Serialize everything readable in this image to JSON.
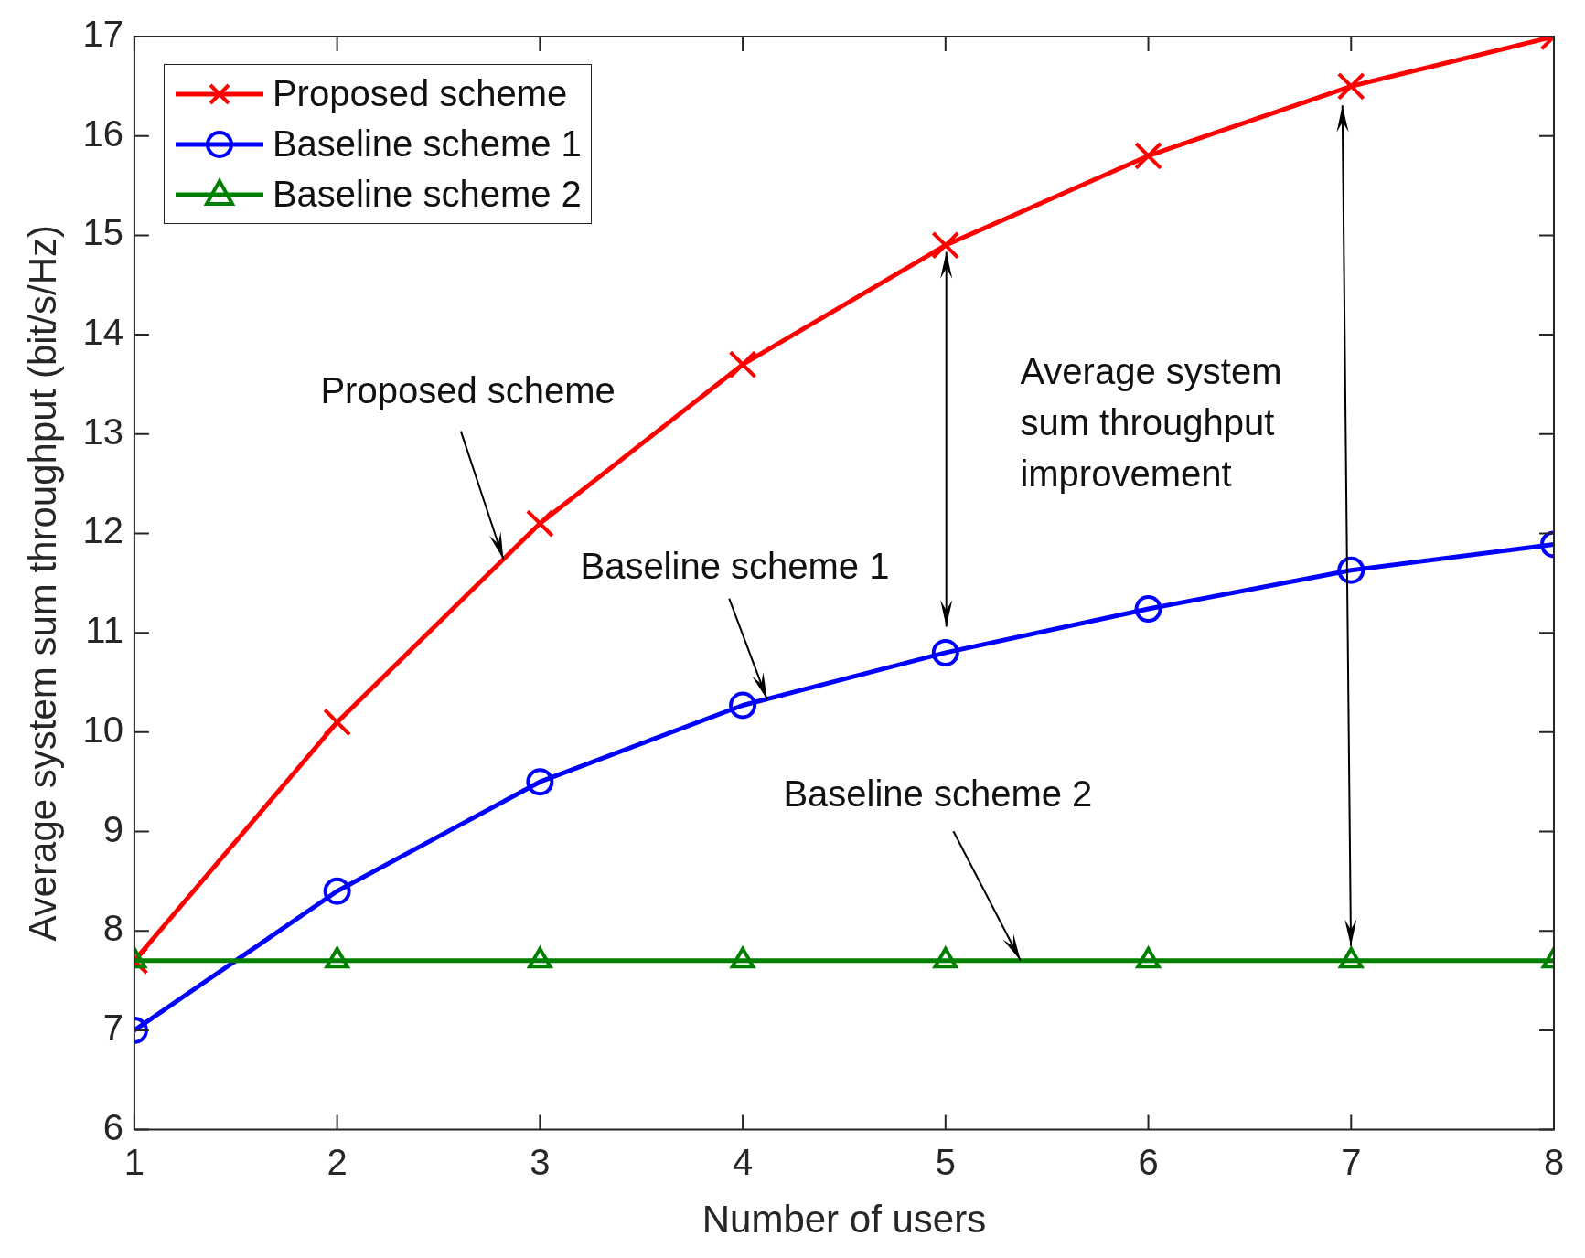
{
  "chart_data": {
    "type": "line",
    "xlabel": "Number of users",
    "ylabel": "Average system sum throughput (bit/s/Hz)",
    "x": [
      1,
      2,
      3,
      4,
      5,
      6,
      7,
      8
    ],
    "series": [
      {
        "name": "Proposed scheme",
        "color": "#ff0000",
        "marker": "cross",
        "values": [
          7.7,
          10.1,
          12.1,
          13.7,
          14.9,
          15.8,
          16.5,
          17.0
        ]
      },
      {
        "name": "Baseline scheme 1",
        "color": "#0000ff",
        "marker": "circle",
        "values": [
          7.0,
          8.4,
          9.5,
          10.27,
          10.8,
          11.24,
          11.63,
          11.89
        ]
      },
      {
        "name": "Baseline scheme 2",
        "color": "#008000",
        "marker": "triangle",
        "values": [
          7.7,
          7.7,
          7.7,
          7.7,
          7.7,
          7.7,
          7.7,
          7.7
        ]
      }
    ],
    "xlim": [
      1,
      8
    ],
    "xticks": [
      1,
      2,
      3,
      4,
      5,
      6,
      7,
      8
    ],
    "ylim": [
      6,
      17
    ],
    "yticks": [
      6,
      7,
      8,
      9,
      10,
      11,
      12,
      13,
      14,
      15,
      16,
      17
    ],
    "grid": false,
    "legend": "top left",
    "line_style": "solid",
    "annotations": [
      {
        "text": "Proposed scheme",
        "x": 2.82,
        "y": 11.74
      },
      {
        "text": "Baseline scheme 1",
        "x": 4.12,
        "y": 10.33
      },
      {
        "text": "Baseline scheme 2",
        "x": 5.37,
        "y": 7.7
      },
      "Average system sum throughput improvement"
    ]
  }
}
